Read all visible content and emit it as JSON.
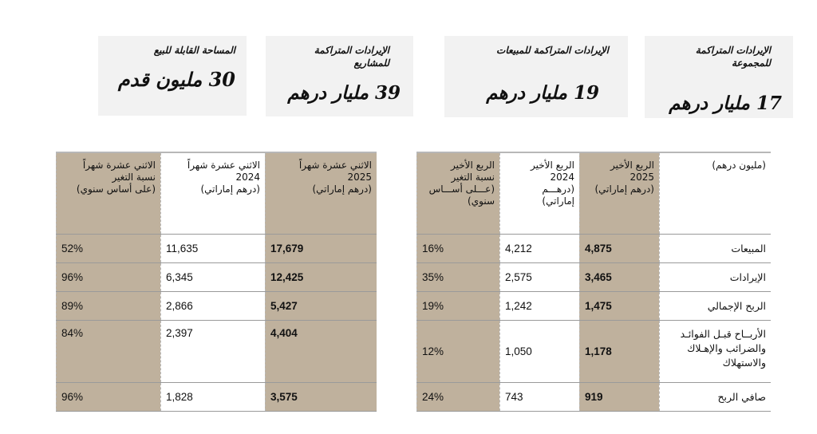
{
  "cards": [
    {
      "title_line1": "المساحة القابلة للبيع",
      "title_line2": "",
      "value": "30 مليون قدم",
      "extra": "ـ"
    },
    {
      "title_line1": "الإيرادات المتراكمة",
      "title_line2": "للمشاريع",
      "value": "39 مليار درهم",
      "extra": ""
    },
    {
      "title_line1": "الإيرادات المتراكمة للمبيعات",
      "title_line2": "",
      "value": "19 مليار درهم",
      "extra": ""
    },
    {
      "title_line1": "الإيرادات المتراكمة",
      "title_line2": "للمجموعة",
      "value": "17 مليار درهم",
      "extra": ""
    }
  ],
  "quarter_table": {
    "headers": {
      "label": "(مليون درهم)",
      "q2025": [
        "الربع الأخير",
        "2025",
        "(درهم إماراتي)"
      ],
      "q2024": [
        "الربع الأخير",
        "2024",
        "(درهـــم",
        "إماراتي)"
      ],
      "qchange": [
        "الربع الأخير",
        "نسبة التغير",
        "(عـــلى أســـاس",
        "سنوي)"
      ]
    },
    "rows": [
      {
        "label": "المبيعات",
        "v2025": "4,875",
        "v2024": "4,212",
        "change": "16%"
      },
      {
        "label": "الإيرادات",
        "v2025": "3,465",
        "v2024": "2,575",
        "change": "35%"
      },
      {
        "label": "الربح الإجمالي",
        "v2025": "1,475",
        "v2024": "1,242",
        "change": "19%"
      },
      {
        "label_lines": [
          "الأربــاح قبـل الفوائـد",
          "والضرائب والإهـلاك",
          "والاستهلاك"
        ],
        "v2025": "1,178",
        "v2024": "1,050",
        "change": "12%"
      },
      {
        "label": "صافي الربح",
        "v2025": "919",
        "v2024": "743",
        "change": "24%"
      }
    ]
  },
  "annual_table": {
    "headers": {
      "y2025": [
        "الاثني عشرة شهراً",
        "2025",
        "(درهم إماراتي)"
      ],
      "y2024": [
        "الاثني عشرة شهراً",
        "2024",
        "(درهم إماراتي)"
      ],
      "ychange": [
        "الاثني عشرة شهراً",
        "نسبة التغير",
        "(على أساس سنوي)"
      ]
    },
    "rows": [
      {
        "v2025": "17,679",
        "v2024": "11,635",
        "change": "52%"
      },
      {
        "v2025": "12,425",
        "v2024": "6,345",
        "change": "96%"
      },
      {
        "v2025": "5,427",
        "v2024": "2,866",
        "change": "89%"
      },
      {
        "v2025": "4,404",
        "v2024": "2,397",
        "change": "84%"
      },
      {
        "v2025": "3,575",
        "v2024": "1,828",
        "change": "96%"
      }
    ]
  },
  "colors": {
    "shade": "#bfb19d",
    "card_bg": "#f2f2f2"
  }
}
